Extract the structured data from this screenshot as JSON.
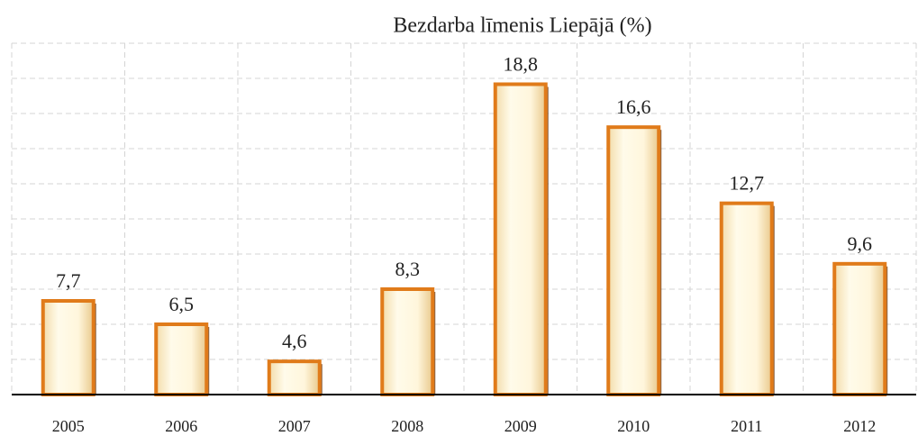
{
  "chart_data": {
    "type": "bar",
    "title": "Bezdarba līmenis Liepājā (%)",
    "categories": [
      "2005",
      "2006",
      "2007",
      "2008",
      "2009",
      "2010",
      "2011",
      "2012"
    ],
    "values": [
      7.7,
      6.5,
      4.6,
      8.3,
      18.8,
      16.6,
      12.7,
      9.6
    ],
    "value_labels": [
      "7,7",
      "6,5",
      "4,6",
      "8,3",
      "18,8",
      "16,6",
      "12,7",
      "9,6"
    ],
    "color": "#e07b1a",
    "ylim": [
      2.9,
      20.9
    ],
    "yticks": [
      2.9,
      4.7,
      6.5,
      8.3,
      10.1,
      11.9,
      13.7,
      15.5,
      17.3,
      19.1,
      20.9
    ],
    "grid": true
  }
}
